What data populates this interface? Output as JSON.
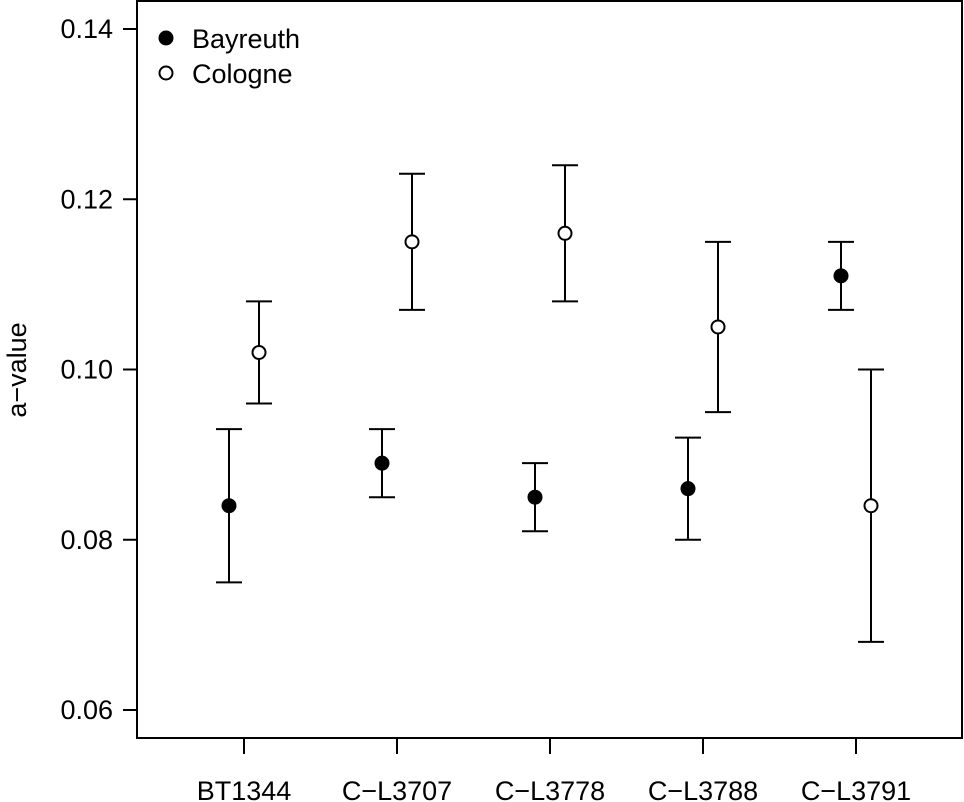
{
  "chart_data": {
    "type": "scatter",
    "ylabel": "a−value",
    "xlabel": "",
    "categories": [
      "BT1344",
      "C−L3707",
      "C−L3778",
      "C−L3788",
      "C−L3791"
    ],
    "yticks": [
      "0.06",
      "0.08",
      "0.10",
      "0.12",
      "0.14"
    ],
    "ylim": [
      0.055,
      0.1435
    ],
    "grid": false,
    "legend_position": "top-left",
    "series": [
      {
        "name": "Bayreuth",
        "marker": "filled-circle",
        "values": [
          0.084,
          0.089,
          0.085,
          0.086,
          0.111
        ],
        "lower": [
          0.075,
          0.085,
          0.081,
          0.08,
          0.107
        ],
        "upper": [
          0.093,
          0.093,
          0.089,
          0.092,
          0.115
        ]
      },
      {
        "name": "Cologne",
        "marker": "open-circle",
        "values": [
          0.102,
          0.115,
          0.116,
          0.105,
          0.084
        ],
        "lower": [
          0.096,
          0.107,
          0.108,
          0.095,
          0.068
        ],
        "upper": [
          0.108,
          0.123,
          0.124,
          0.115,
          0.1
        ]
      }
    ]
  }
}
